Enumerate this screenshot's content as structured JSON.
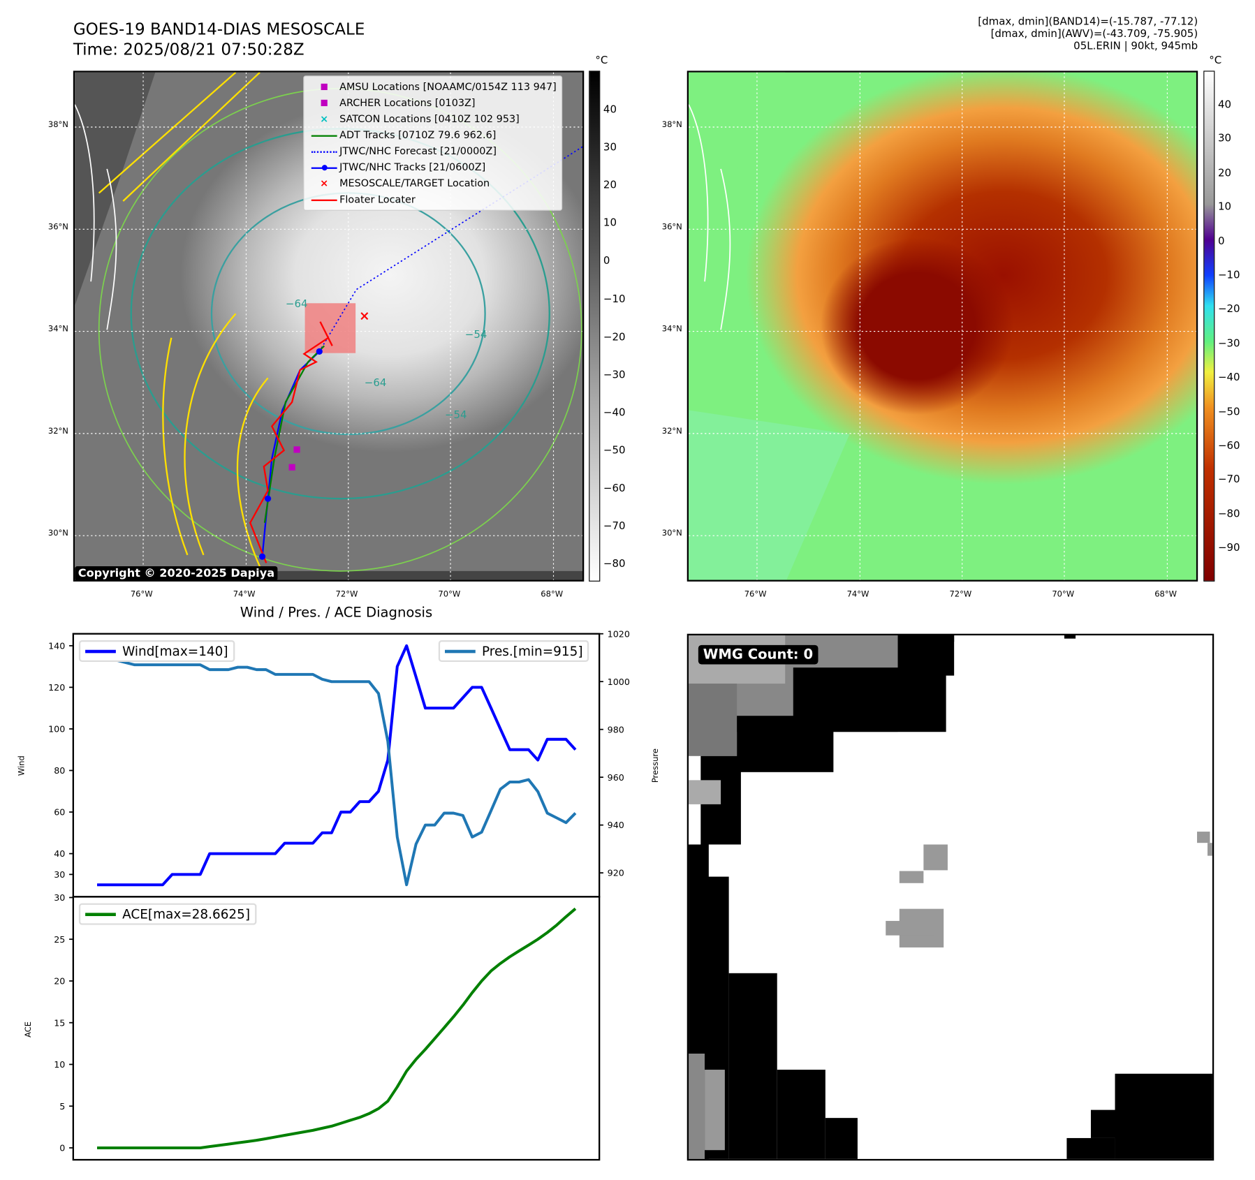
{
  "header": {
    "title": "GOES-19 BAND14-DIAS MESOSCALE",
    "time": "Time: 2025/08/21 07:50:28Z",
    "stats": [
      "[dmax, dmin](BAND14)=(-15.787, -77.12)",
      "[dmax, dmin](AWV)=(-43.709, -75.905)",
      "05L.ERIN | 90kt, 945mb"
    ]
  },
  "map": {
    "lat_labels": [
      "38°N",
      "36°N",
      "34°N",
      "32°N",
      "30°N"
    ],
    "lon_labels": [
      "76°W",
      "74°W",
      "72°W",
      "70°W",
      "68°W"
    ],
    "copyright": "Copyright © 2020-2025 Dapiya",
    "unit": "°C",
    "cbar1_ticks": [
      "40",
      "30",
      "20",
      "10",
      "0",
      "−10",
      "−20",
      "−30",
      "−40",
      "−50",
      "−60",
      "−70",
      "−80"
    ],
    "cbar2_ticks": [
      "40",
      "30",
      "20",
      "10",
      "0",
      "−10",
      "−20",
      "−30",
      "−40",
      "−50",
      "−60",
      "−70",
      "−80",
      "−90"
    ],
    "contour_labels": [
      "−64",
      "−54",
      "−54",
      "−64"
    ],
    "legend": [
      {
        "label": "AMSU Locations [NOAAMC/0154Z 113 947]",
        "symbol": "square",
        "color": "#c000c0"
      },
      {
        "label": "ARCHER Locations [0103Z]",
        "symbol": "square",
        "color": "#c000c0"
      },
      {
        "label": "SATCON Locations [0410Z 102 953]",
        "symbol": "x",
        "color": "#00c0c0"
      },
      {
        "label": "ADT Tracks [0710Z 79.6 962.6]",
        "symbol": "line",
        "color": "#008000"
      },
      {
        "label": "JTWC/NHC Forecast [21/0000Z]",
        "symbol": "dotted",
        "color": "#0000ff"
      },
      {
        "label": "JTWC/NHC Tracks [21/0600Z]",
        "symbol": "line-dot",
        "color": "#0000ff"
      },
      {
        "label": "MESOSCALE/TARGET Location",
        "symbol": "x",
        "color": "#ff0000"
      },
      {
        "label": "Floater Locater",
        "symbol": "line",
        "color": "#ff0000"
      }
    ]
  },
  "wmg": {
    "label": "WMG Count: 0"
  },
  "chart_data": [
    {
      "type": "line",
      "title": "Wind / Pres. / ACE Diagnosis",
      "ylabel": "Wind",
      "ylabel2": "Pressure",
      "ylim": [
        19.25,
        145.75
      ],
      "ylim2": [
        910,
        1020
      ],
      "xlim": [
        -2.55,
        53.55
      ],
      "yticks": [
        30,
        40,
        60,
        80,
        100,
        120,
        140
      ],
      "yticks2": [
        920,
        940,
        960,
        980,
        1000,
        1020
      ],
      "series": [
        {
          "name": "Wind[max=140]",
          "axis": "left",
          "color": "#0000ff",
          "values": [
            25,
            25,
            25,
            25,
            25,
            25,
            25,
            25,
            30,
            30,
            30,
            30,
            40,
            40,
            40,
            40,
            40,
            40,
            40,
            40,
            45,
            45,
            45,
            45,
            50,
            50,
            60,
            60,
            65,
            65,
            70,
            85,
            130,
            140,
            125,
            110,
            110,
            110,
            110,
            115,
            120,
            120,
            110,
            100,
            90,
            90,
            90,
            85,
            95,
            95,
            95,
            90
          ]
        },
        {
          "name": "Pres.[min=915]",
          "axis": "right",
          "color": "#1f77b4",
          "values": [
            1015,
            1015,
            1009,
            1008,
            1007,
            1007,
            1007,
            1007,
            1007,
            1007,
            1007,
            1007,
            1005,
            1005,
            1005,
            1006,
            1006,
            1005,
            1005,
            1003,
            1003,
            1003,
            1003,
            1003,
            1001,
            1000,
            1000,
            1000,
            1000,
            1000,
            995,
            975,
            935,
            915,
            932,
            940,
            940,
            945,
            945,
            944,
            935,
            937,
            946,
            955,
            958,
            958,
            959,
            954,
            945,
            943,
            941,
            945
          ]
        }
      ]
    },
    {
      "type": "line",
      "ylabel": "ACE",
      "ylim": [
        -1.43,
        30.09
      ],
      "xlim": [
        -2.55,
        53.55
      ],
      "yticks": [
        0,
        5,
        10,
        15,
        20,
        25,
        30
      ],
      "series": [
        {
          "name": "ACE[max=28.6625]",
          "color": "#008000",
          "values": [
            0,
            0,
            0,
            0,
            0,
            0,
            0,
            0,
            0,
            0,
            0,
            0,
            0.15,
            0.3,
            0.45,
            0.6,
            0.75,
            0.9,
            1.1,
            1.3,
            1.5,
            1.7,
            1.9,
            2.1,
            2.35,
            2.6,
            2.95,
            3.3,
            3.65,
            4.1,
            4.7,
            5.6,
            7.3,
            9.2,
            10.6,
            11.8,
            13.1,
            14.4,
            15.7,
            17.1,
            18.6,
            20.0,
            21.2,
            22.1,
            22.9,
            23.6,
            24.3,
            25.0,
            25.8,
            26.7,
            27.7,
            28.6625
          ]
        }
      ]
    }
  ]
}
